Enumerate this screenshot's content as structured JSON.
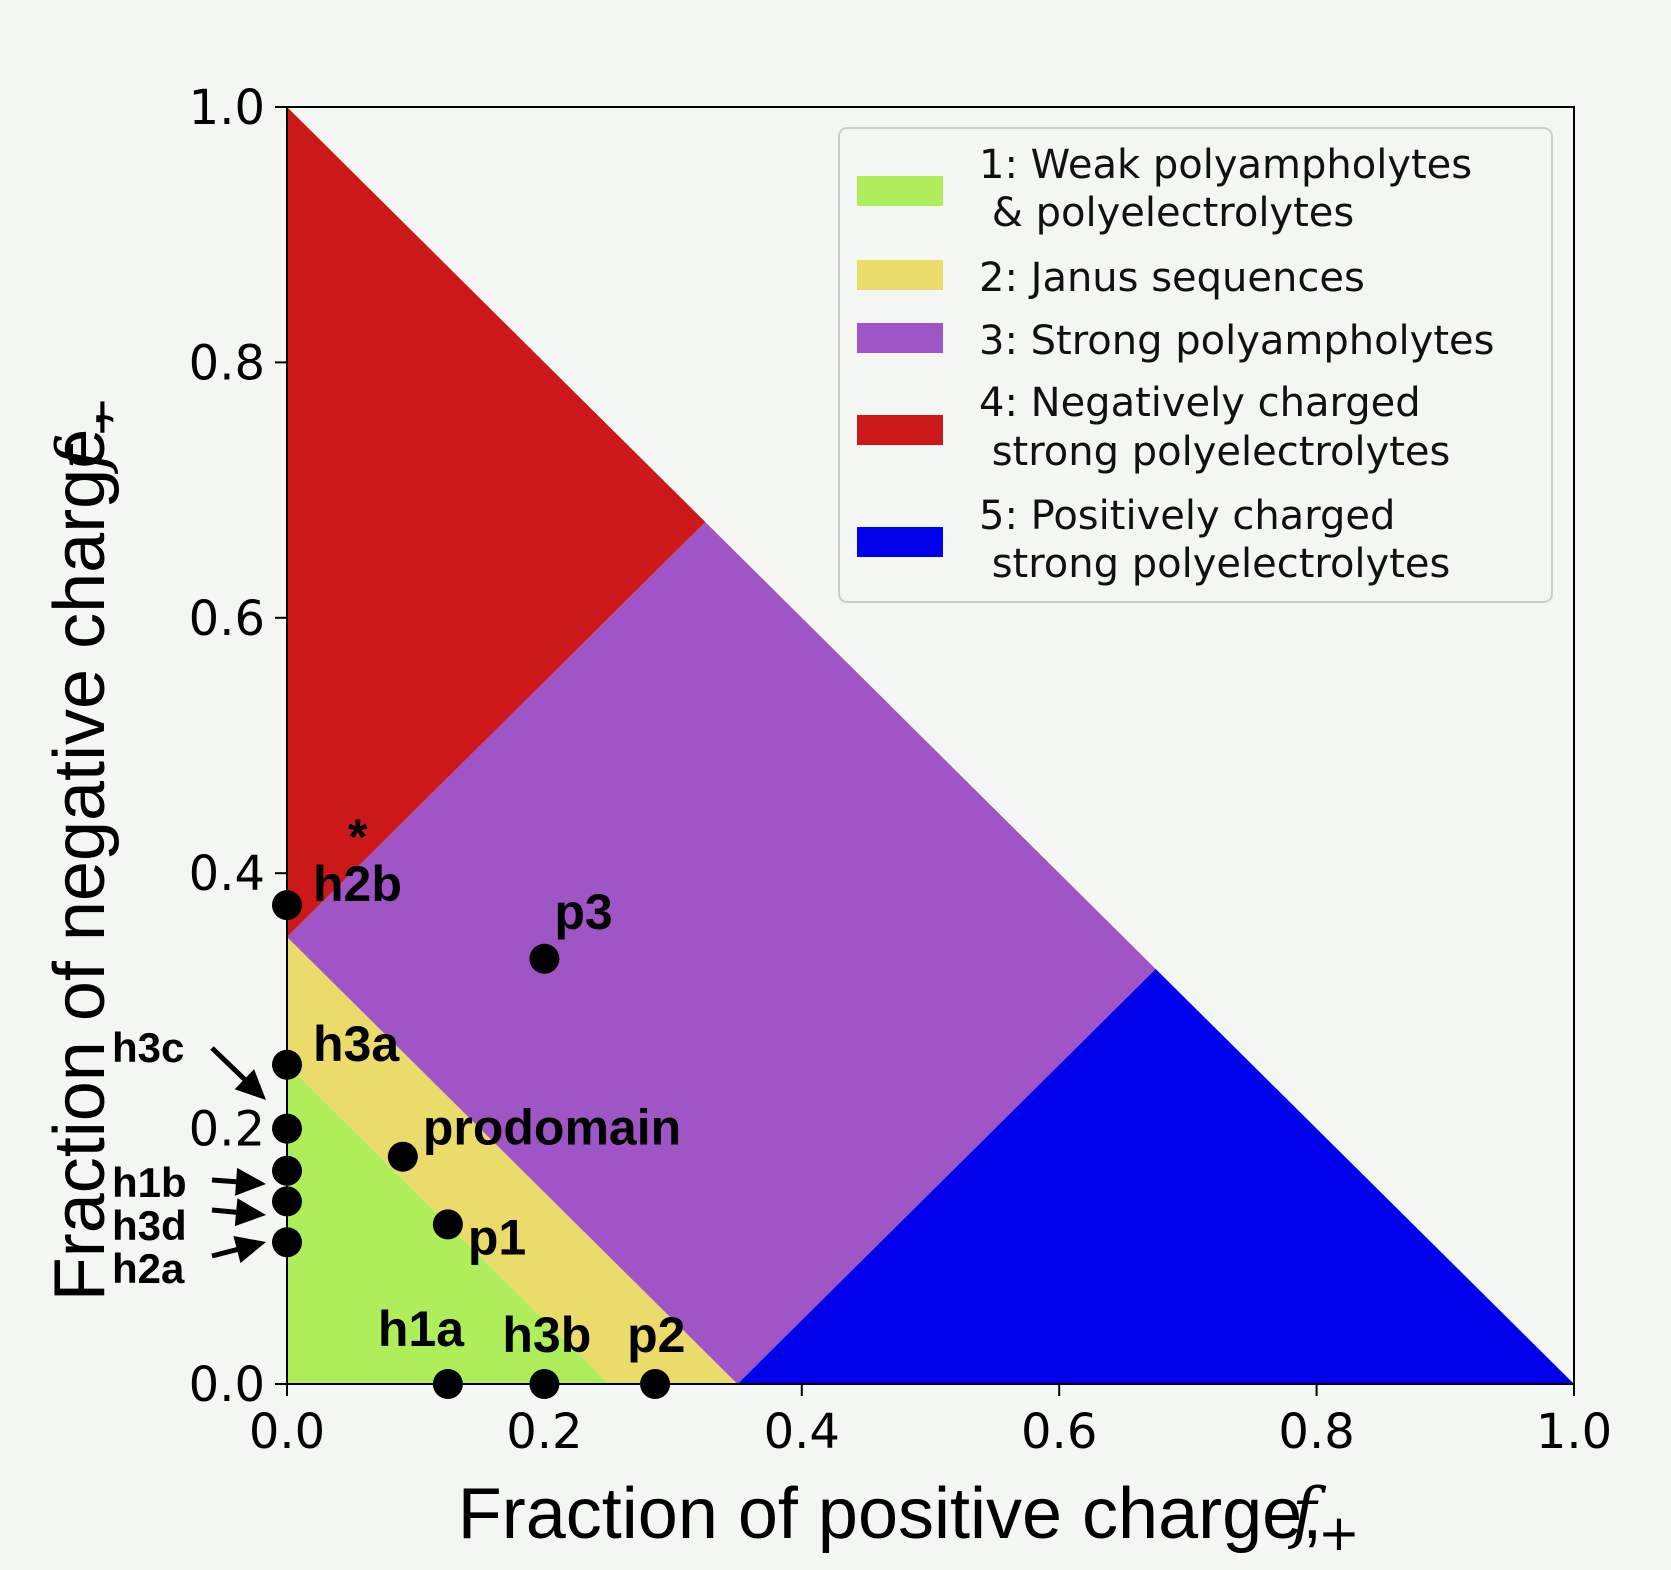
{
  "chart_data": {
    "type": "scatter",
    "xlabel": "Fraction of positive charge,",
    "xsymbol": "f",
    "xsub": "+",
    "ylabel": "Fraction of negative charge,",
    "ysymbol": "f",
    "ysub": "−",
    "xlim": [
      0,
      1
    ],
    "ylim": [
      0,
      1
    ],
    "xticks": [
      "0.0",
      "0.2",
      "0.4",
      "0.6",
      "0.8",
      "1.0"
    ],
    "yticks": [
      "0.0",
      "0.2",
      "0.4",
      "0.6",
      "0.8",
      "1.0"
    ],
    "grid": false,
    "legend_position": "top-right",
    "regions": [
      {
        "name": "1: Weak polyampholytes\n & polyelectrolytes",
        "color": "#aeee5a",
        "polygon": [
          [
            0,
            0
          ],
          [
            0.25,
            0
          ],
          [
            0,
            0.25
          ]
        ]
      },
      {
        "name": "2: Janus sequences",
        "color": "#ebdb6a",
        "polygon": [
          [
            0.25,
            0
          ],
          [
            0.35,
            0
          ],
          [
            0,
            0.35
          ],
          [
            0,
            0.25
          ]
        ]
      },
      {
        "name": "3: Strong polyampholytes",
        "color": "#a055c6",
        "polygon": [
          [
            0.35,
            0
          ],
          [
            0.675,
            0.325
          ],
          [
            0.325,
            0.675
          ],
          [
            0,
            0.35
          ]
        ]
      },
      {
        "name": "4: Negatively charged\n strong polyelectrolytes",
        "color": "#cc1818",
        "polygon": [
          [
            0,
            0.35
          ],
          [
            0.325,
            0.675
          ],
          [
            0,
            1
          ]
        ]
      },
      {
        "name": "5: Positively charged\n strong polyelectrolytes",
        "color": "#0000ea",
        "polygon": [
          [
            0.35,
            0
          ],
          [
            1,
            0
          ],
          [
            0.675,
            0.325
          ]
        ]
      }
    ],
    "points": [
      {
        "label": "h2b",
        "x": 0.0,
        "y": 0.375
      },
      {
        "label": "p3",
        "x": 0.2,
        "y": 0.333
      },
      {
        "label": "h3a",
        "x": 0.0,
        "y": 0.25
      },
      {
        "label": "h3c",
        "x": 0.0,
        "y": 0.2
      },
      {
        "label": "prodomain",
        "x": 0.09,
        "y": 0.178
      },
      {
        "label": "h1b",
        "x": 0.0,
        "y": 0.167
      },
      {
        "label": "h3d",
        "x": 0.0,
        "y": 0.143
      },
      {
        "label": "p1",
        "x": 0.125,
        "y": 0.125
      },
      {
        "label": "h2a",
        "x": 0.0,
        "y": 0.111
      },
      {
        "label": "h1a",
        "x": 0.125,
        "y": 0.0
      },
      {
        "label": "h3b",
        "x": 0.2,
        "y": 0.0
      },
      {
        "label": "p2",
        "x": 0.286,
        "y": 0.0
      }
    ],
    "annotations": {
      "star": "*"
    }
  }
}
